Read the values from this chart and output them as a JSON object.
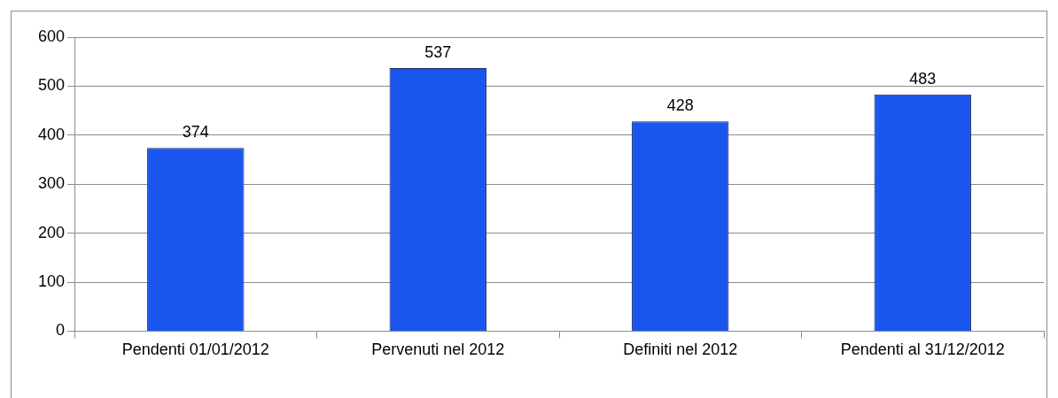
{
  "chart_data": {
    "type": "bar",
    "categories": [
      "Pendenti 01/01/2012",
      "Pervenuti nel 2012",
      "Definiti nel 2012",
      "Pendenti al 31/12/2012"
    ],
    "values": [
      374,
      537,
      428,
      483
    ],
    "color": "#1a56ee",
    "ylim": [
      0,
      600
    ],
    "yticks": [
      0,
      100,
      200,
      300,
      400,
      500,
      600
    ],
    "grid": "y",
    "data_labels": true,
    "legend": false
  }
}
